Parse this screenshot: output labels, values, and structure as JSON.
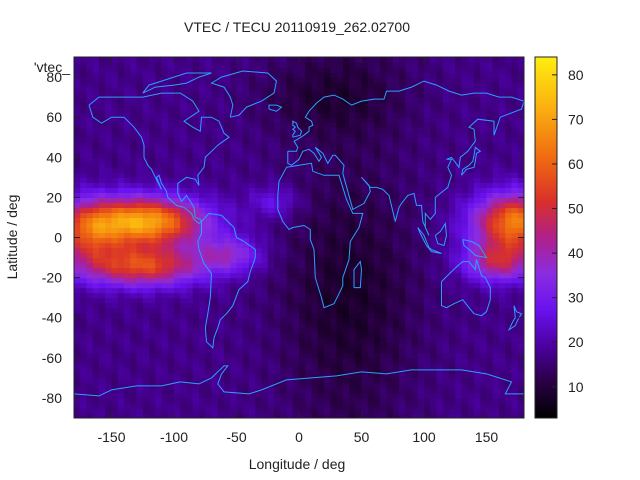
{
  "title": "VTEC / TECU 20110919_262.02700",
  "corner_label": "'vtec_",
  "x_axis": {
    "label": "Longitude / deg",
    "range": [
      -180,
      180
    ],
    "ticks": [
      "-150",
      "-100",
      "-50",
      "0",
      "50",
      "100",
      "150"
    ],
    "tick_values": [
      -150,
      -100,
      -50,
      0,
      50,
      100,
      150
    ]
  },
  "y_axis": {
    "label": "Latitude / deg",
    "range": [
      -90,
      90
    ],
    "ticks": [
      "80",
      "60",
      "40",
      "20",
      "0",
      "-20",
      "-40",
      "-60",
      "-80"
    ],
    "tick_values": [
      80,
      60,
      40,
      20,
      0,
      -20,
      -40,
      -60,
      -80
    ]
  },
  "colorbar": {
    "range": [
      3,
      84
    ],
    "ticks": [
      "80",
      "70",
      "60",
      "50",
      "40",
      "30",
      "20",
      "10"
    ],
    "tick_values": [
      80,
      70,
      60,
      50,
      40,
      30,
      20,
      10
    ],
    "palette": [
      "#000000",
      "#2a0044",
      "#4b00a0",
      "#6a12f0",
      "#8a2ce0",
      "#b0208a",
      "#d8302a",
      "#f06a10",
      "#fab010",
      "#ffee10"
    ]
  },
  "colors": {
    "coastline": "#2aa0ff",
    "background": "#ffffff"
  }
}
